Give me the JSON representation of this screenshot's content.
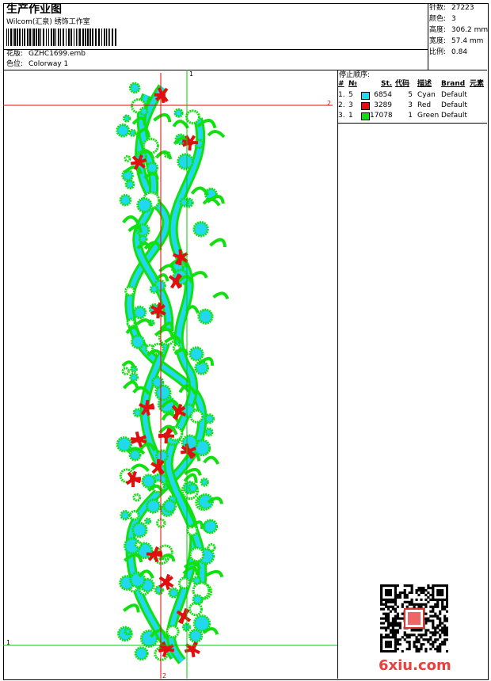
{
  "header": {
    "title": "生产作业图",
    "company": "Wilcom(汇泉) 绣饰工作室",
    "design_label": "花版:",
    "design": "GZHC1699.emb",
    "colorway_label": "色位:",
    "colorway": "Colorway 1"
  },
  "stats": [
    {
      "label": "针数:",
      "value": "27223"
    },
    {
      "label": "颜色:",
      "value": "3"
    },
    {
      "label": "高度:",
      "value": "306.2 mm"
    },
    {
      "label": "宽度:",
      "value": "57.4 mm"
    },
    {
      "label": "比例:",
      "value": "0.84"
    }
  ],
  "stop_sequence": {
    "title": "停止顺序:",
    "columns": [
      "#",
      "№",
      "St.",
      "代码",
      "描述",
      "Brand",
      "元素"
    ],
    "rows": [
      {
        "index": "1.",
        "needle": "5",
        "color": "#22d8ee",
        "stitches": "6854",
        "code": "5",
        "name": "Cyan",
        "brand": "Default"
      },
      {
        "index": "2.",
        "needle": "3",
        "color": "#e01010",
        "stitches": "3289",
        "code": "3",
        "name": "Red",
        "brand": "Default"
      },
      {
        "index": "3.",
        "needle": "1",
        "color": "#10e010",
        "stitches": "17078",
        "code": "1",
        "name": "Green",
        "brand": "Default"
      }
    ]
  },
  "guides": {
    "one": "1",
    "two": "2"
  },
  "watermark": "6xiu.com"
}
